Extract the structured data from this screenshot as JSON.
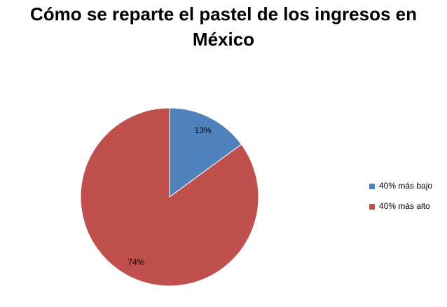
{
  "chart_data": {
    "type": "pie",
    "title": "Cómo se reparte el pastel de los ingresos en México",
    "categories": [
      "40% más bajo",
      "40% más alto"
    ],
    "values": [
      13,
      74
    ],
    "value_labels": [
      "13%",
      "74%"
    ],
    "colors": [
      "#4f81bd",
      "#c0504d"
    ],
    "legend": "right"
  }
}
